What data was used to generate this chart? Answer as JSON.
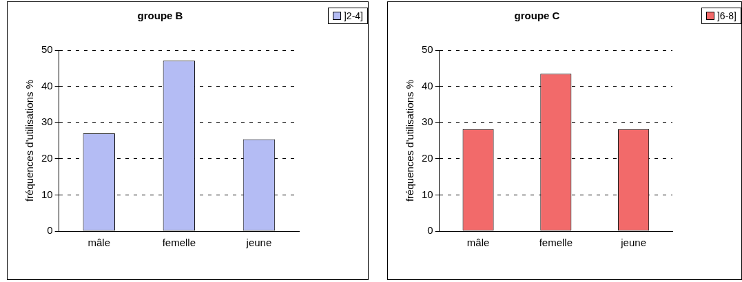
{
  "chart_data": [
    {
      "type": "bar",
      "title": "groupe B",
      "ylabel": "fréquences d'utilisations %",
      "categories": [
        "mâle",
        "femelle",
        "jeune"
      ],
      "series": [
        {
          "name": "]2-4]",
          "color": "#b4bcf4",
          "values": [
            27,
            47.1,
            25.4
          ]
        }
      ],
      "ylim": [
        0,
        50
      ],
      "yticks": [
        0,
        10,
        20,
        30,
        40,
        50
      ],
      "grid": "y",
      "legend": "top right"
    },
    {
      "type": "bar",
      "title": "groupe C",
      "ylabel": "fréquences d'utilisations %",
      "categories": [
        "mâle",
        "femelle",
        "jeune"
      ],
      "series": [
        {
          "name": "]6-8]",
          "color": "#f26a6a",
          "values": [
            28.2,
            43.5,
            28.2
          ]
        }
      ],
      "ylim": [
        0,
        50
      ],
      "yticks": [
        0,
        10,
        20,
        30,
        40,
        50
      ],
      "grid": "y",
      "legend": "top right"
    }
  ]
}
